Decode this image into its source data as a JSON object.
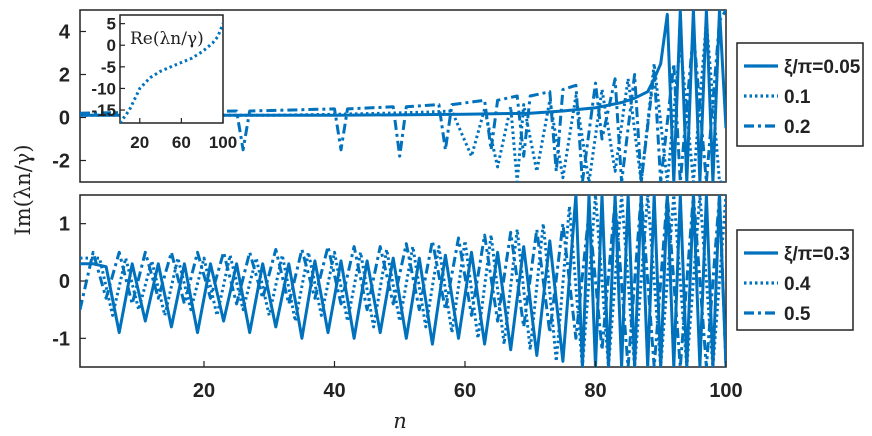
{
  "chart_data": {
    "type": "line",
    "color": "#0072BD",
    "xlabel": "n",
    "ylabel": "Im(λn/γ)",
    "panels": [
      {
        "id": "top",
        "xlim": [
          1,
          100
        ],
        "ylim": [
          -3,
          5
        ],
        "yticks": [
          4,
          2,
          0,
          -2
        ],
        "legend": {
          "placement": "right",
          "title_prefix": "ξ/π=",
          "entries": [
            {
              "label": "ξ/π=0.05",
              "value": 0.05,
              "style": "solid"
            },
            {
              "label": "0.1",
              "value": 0.1,
              "style": "dotted"
            },
            {
              "label": "0.2",
              "value": 0.2,
              "style": "dashdot"
            }
          ]
        },
        "series": [
          {
            "label": "ξ/π=0.05",
            "style": "solid",
            "x": [
              1,
              20,
              40,
              60,
              70,
              75,
              80,
              84,
              86,
              88,
              89,
              90,
              91,
              92,
              93,
              94,
              95,
              96,
              97,
              98,
              99,
              100
            ],
            "y": [
              0.1,
              0.1,
              0.1,
              0.15,
              0.2,
              0.3,
              0.45,
              0.7,
              0.9,
              1.2,
              1.8,
              2.5,
              4.8,
              -3.0,
              5.0,
              -3.0,
              5.0,
              -3.0,
              5.0,
              -3.0,
              5.0,
              -0.5
            ]
          },
          {
            "label": "0.1",
            "style": "dotted",
            "x": [
              1,
              10,
              20,
              30,
              40,
              48,
              54,
              58,
              61,
              63,
              65,
              67,
              68,
              69,
              71,
              73,
              75,
              77,
              79,
              81,
              83,
              85,
              87,
              89,
              91,
              93,
              95,
              97,
              99,
              100
            ],
            "y": [
              0.1,
              0.1,
              0.1,
              0.1,
              0.15,
              0.2,
              0.25,
              0.3,
              -1.8,
              0.4,
              -2.3,
              0.5,
              -3.0,
              0.6,
              -2.5,
              0.8,
              -2.8,
              1.0,
              -3.0,
              1.3,
              -2.5,
              1.8,
              -3.0,
              2.5,
              -3.0,
              3.5,
              -3.0,
              4.5,
              -3.0,
              -3.0
            ]
          },
          {
            "label": "0.2",
            "style": "dashdot",
            "x": [
              1,
              25,
              26,
              27,
              40,
              41,
              42,
              49,
              50,
              51,
              56,
              57,
              58,
              63,
              64,
              65,
              68,
              69,
              70,
              73,
              74,
              75,
              77,
              78,
              80,
              81,
              83,
              84,
              86,
              87,
              89,
              90,
              92,
              93,
              95,
              97,
              99,
              100
            ],
            "y": [
              0.2,
              0.3,
              -1.5,
              0.3,
              0.4,
              -1.5,
              0.4,
              0.5,
              -1.8,
              0.5,
              0.6,
              -1.5,
              0.6,
              0.8,
              -1.5,
              0.8,
              1.0,
              -1.8,
              1.0,
              1.2,
              -2.5,
              1.3,
              1.5,
              -3.0,
              1.6,
              -1.0,
              1.8,
              -3.0,
              2.0,
              -3.0,
              2.2,
              -3.0,
              2.5,
              -3.0,
              4.0,
              -3.0,
              4.5,
              5.0
            ]
          }
        ],
        "inset": {
          "title": "Re(λn/γ)",
          "xlim": [
            1,
            100
          ],
          "ylim": [
            -18,
            7
          ],
          "xticks": [
            20,
            60,
            100
          ],
          "yticks": [
            5,
            0,
            -5,
            -10,
            -15
          ],
          "series": {
            "style": "dotted",
            "x": [
              1,
              10,
              20,
              30,
              40,
              50,
              60,
              70,
              80,
              90,
              95,
              100
            ],
            "y": [
              -18,
              -15,
              -10,
              -7.5,
              -6,
              -5,
              -4,
              -3,
              -1.5,
              0.5,
              2.0,
              5.0
            ]
          }
        }
      },
      {
        "id": "bottom",
        "xlim": [
          1,
          100
        ],
        "ylim": [
          -1.5,
          1.5
        ],
        "xticks": [
          20,
          40,
          60,
          80,
          100
        ],
        "yticks": [
          1,
          0,
          -1
        ],
        "legend": {
          "placement": "right",
          "entries": [
            {
              "label": "ξ/π=0.3",
              "value": 0.3,
              "style": "solid"
            },
            {
              "label": "0.4",
              "value": 0.4,
              "style": "dotted"
            },
            {
              "label": "0.5",
              "value": 0.5,
              "style": "dashdot"
            }
          ]
        },
        "series": [
          {
            "label": "ξ/π=0.3",
            "style": "solid",
            "x": [
              1,
              3,
              5,
              7,
              9,
              11,
              13,
              15,
              17,
              19,
              21,
              23,
              25,
              27,
              29,
              31,
              33,
              35,
              37,
              39,
              41,
              43,
              45,
              47,
              49,
              51,
              53,
              55,
              57,
              59,
              61,
              63,
              65,
              67,
              69,
              71,
              73,
              75,
              77,
              78,
              79,
              80,
              81,
              82,
              83,
              84,
              85,
              86,
              87,
              88,
              89,
              90,
              91,
              92,
              93,
              94,
              95,
              96,
              97,
              98,
              99,
              100
            ],
            "y": [
              0.3,
              0.3,
              0.25,
              -0.9,
              0.3,
              -0.7,
              0.3,
              -0.8,
              0.3,
              -0.9,
              0.3,
              -0.7,
              0.3,
              -0.9,
              0.3,
              -0.8,
              0.3,
              -1.0,
              0.35,
              -0.9,
              0.35,
              -1.0,
              0.35,
              -0.9,
              0.4,
              -1.0,
              0.4,
              -1.1,
              0.45,
              -1.0,
              0.5,
              -1.1,
              0.5,
              -1.2,
              0.6,
              -1.3,
              0.7,
              -1.4,
              1.5,
              -1.5,
              1.5,
              -1.5,
              1.5,
              -1.5,
              1.5,
              -1.5,
              1.5,
              -1.5,
              1.5,
              -1.5,
              1.5,
              -1.5,
              1.5,
              -1.5,
              1.5,
              -1.5,
              1.5,
              -1.5,
              1.5,
              -1.5,
              1.5,
              -1.5
            ]
          },
          {
            "label": "0.4",
            "style": "dotted",
            "x": [
              1,
              4,
              6,
              8,
              10,
              12,
              14,
              16,
              18,
              20,
              22,
              24,
              26,
              28,
              30,
              32,
              34,
              36,
              38,
              40,
              42,
              44,
              46,
              48,
              50,
              52,
              54,
              56,
              58,
              60,
              62,
              64,
              66,
              68,
              70,
              72,
              74,
              76,
              78,
              80,
              82,
              84,
              86,
              88,
              90,
              92,
              94,
              96,
              98,
              100
            ],
            "y": [
              0.4,
              0.4,
              -0.6,
              0.4,
              -0.5,
              0.35,
              -0.6,
              0.4,
              -0.5,
              0.4,
              -0.6,
              0.45,
              -0.5,
              0.4,
              -0.6,
              0.45,
              -0.7,
              0.5,
              -0.6,
              0.5,
              -0.7,
              0.5,
              -0.8,
              0.55,
              -0.7,
              0.6,
              -0.8,
              0.6,
              -0.9,
              0.7,
              -1.0,
              0.8,
              -1.1,
              0.9,
              -1.2,
              1.0,
              -1.4,
              1.3,
              -1.5,
              1.5,
              -1.5,
              1.5,
              -1.5,
              1.5,
              -1.5,
              1.5,
              -1.5,
              1.5,
              -1.5,
              1.5
            ]
          },
          {
            "label": "0.5",
            "style": "dashdot",
            "x": [
              1,
              3,
              5,
              7,
              9,
              11,
              13,
              15,
              17,
              19,
              21,
              23,
              25,
              27,
              29,
              31,
              33,
              35,
              37,
              39,
              41,
              43,
              45,
              47,
              49,
              51,
              53,
              55,
              57,
              59,
              61,
              63,
              65,
              67,
              69,
              71,
              73,
              75,
              77,
              79,
              81,
              83,
              85,
              87,
              89,
              91,
              93,
              95,
              97,
              99,
              100
            ],
            "y": [
              -0.5,
              0.5,
              -0.3,
              0.5,
              -0.4,
              0.5,
              -0.3,
              0.5,
              -0.4,
              0.5,
              -0.3,
              0.5,
              -0.4,
              0.5,
              -0.3,
              0.55,
              -0.4,
              0.55,
              -0.3,
              0.6,
              -0.4,
              0.6,
              -0.5,
              0.6,
              -0.4,
              0.65,
              -0.5,
              0.7,
              -0.5,
              0.75,
              -0.6,
              0.8,
              -0.7,
              0.85,
              -0.8,
              0.9,
              -0.9,
              1.0,
              -1.0,
              1.2,
              -1.2,
              1.4,
              -1.5,
              1.5,
              -1.5,
              1.5,
              -1.5,
              1.5,
              -1.5,
              1.5,
              -1.5
            ]
          }
        ]
      }
    ]
  }
}
